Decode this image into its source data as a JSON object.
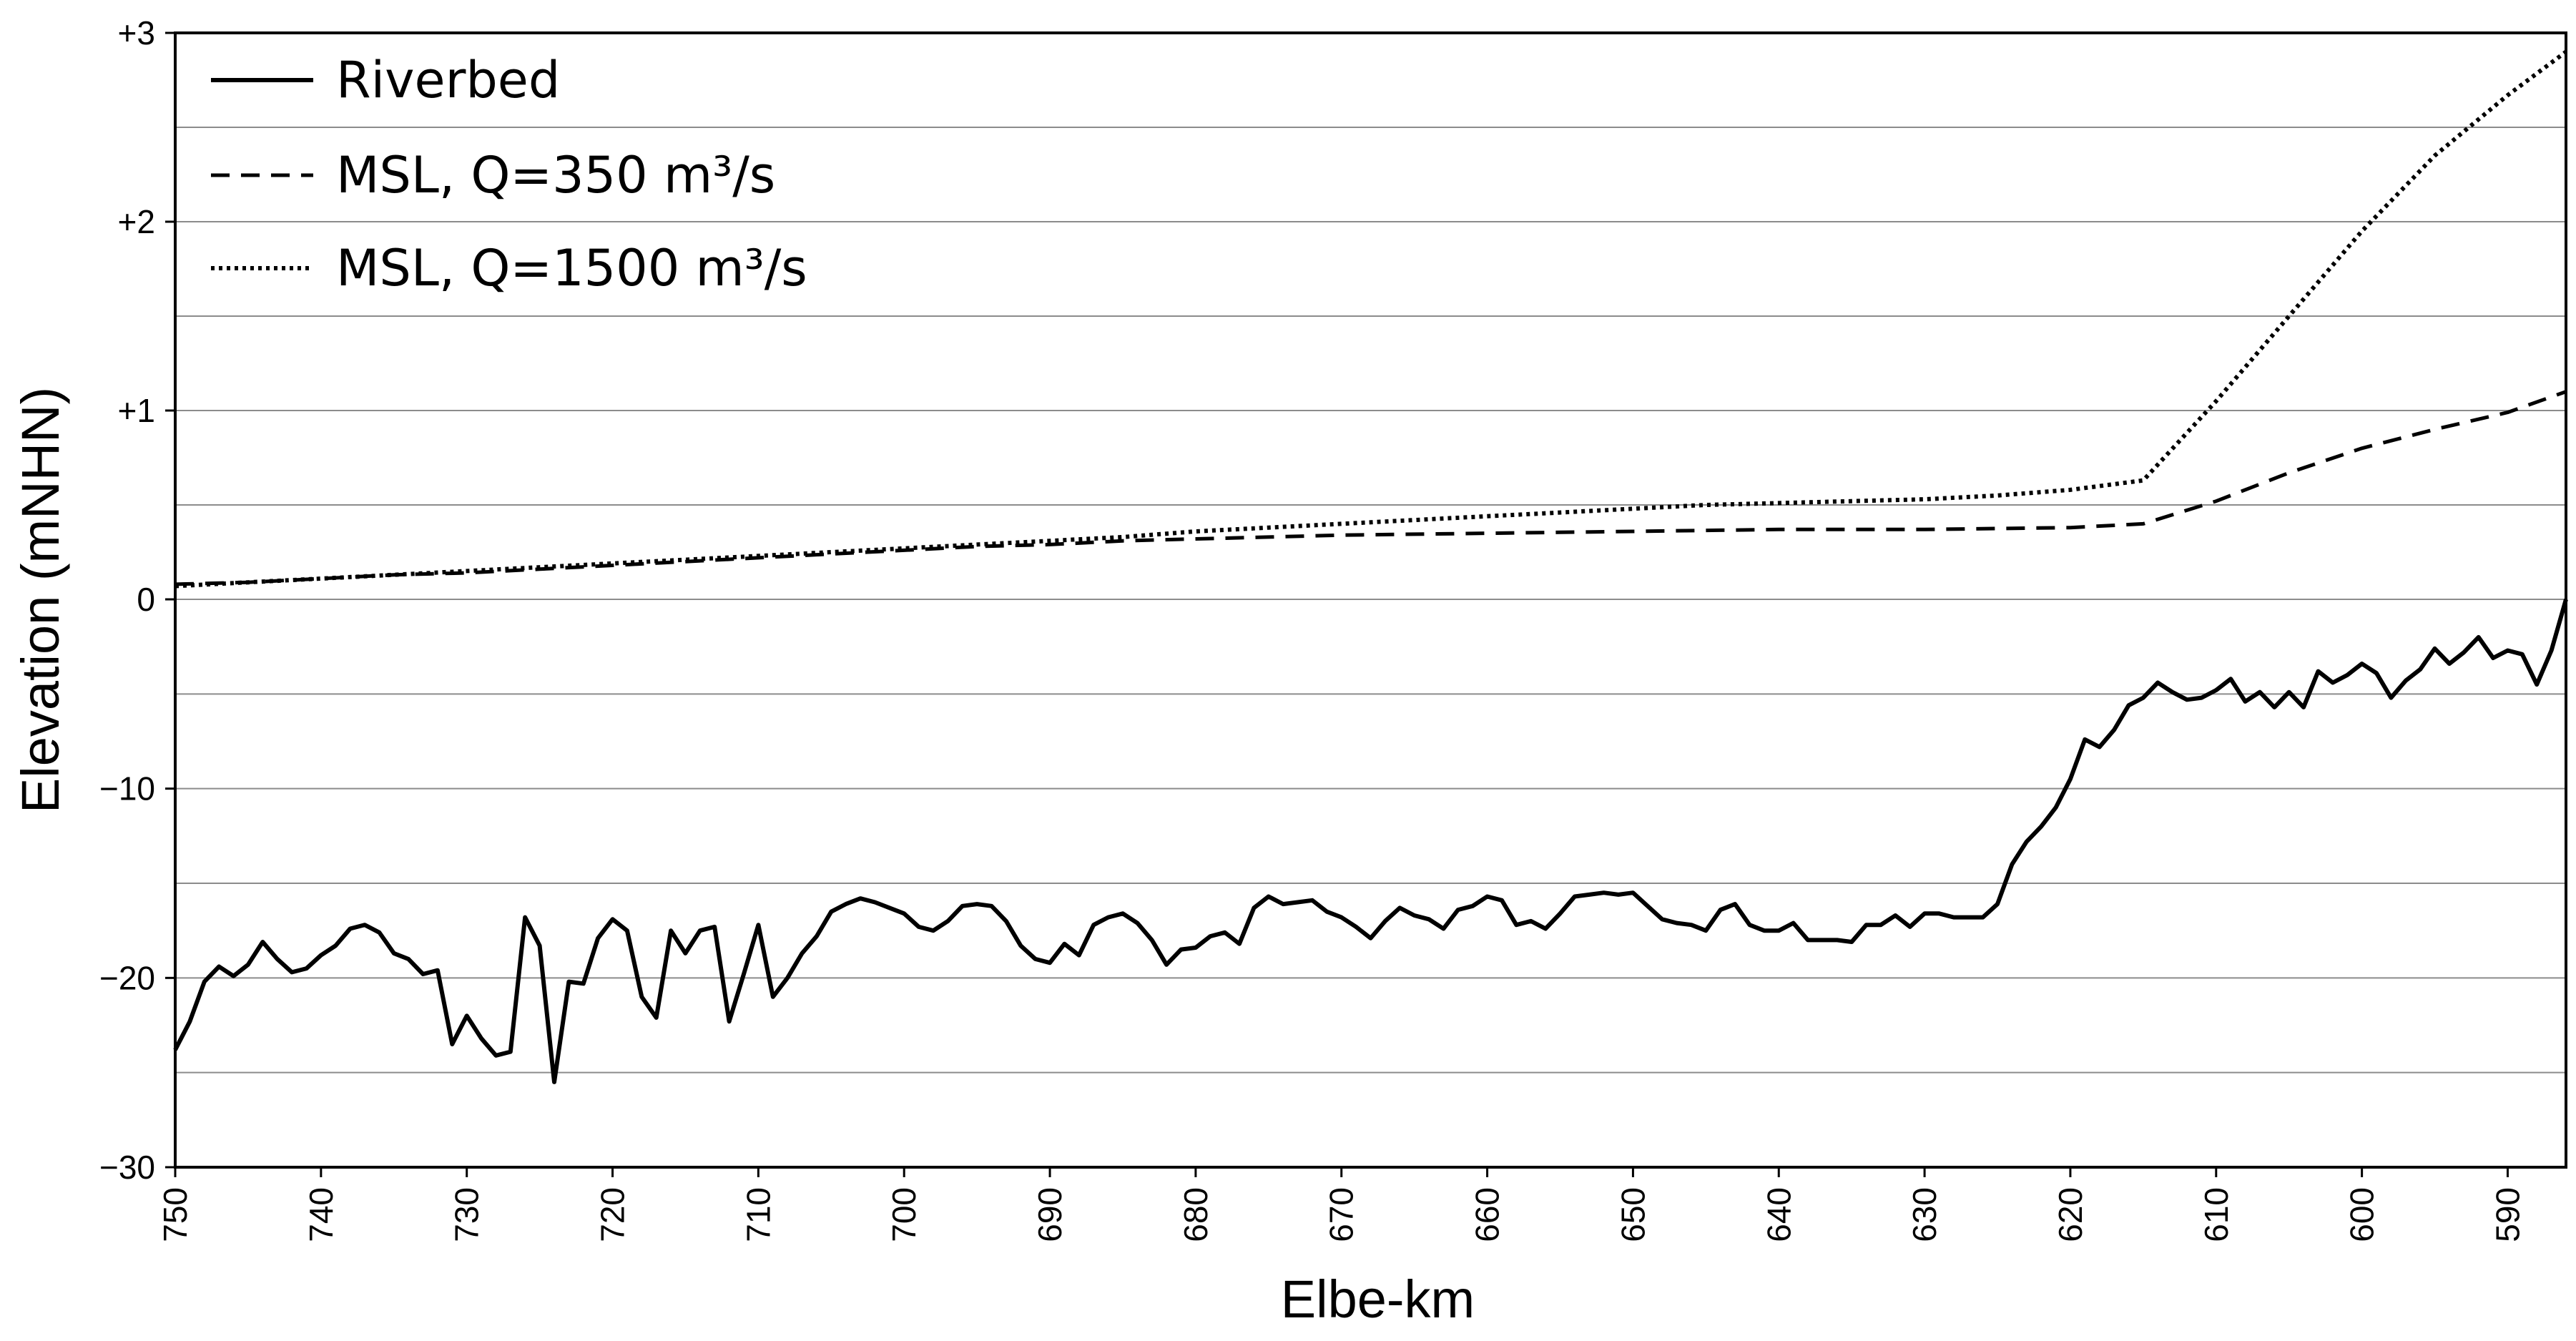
{
  "chart_data": {
    "type": "line",
    "title": "",
    "xlabel": "Elbe-km",
    "ylabel": "Elevation (mNHN)",
    "x_reversed": true,
    "xlim": [
      750,
      586
    ],
    "x_ticks": [
      750,
      740,
      730,
      720,
      710,
      700,
      690,
      680,
      670,
      660,
      650,
      640,
      630,
      620,
      610,
      600,
      590
    ],
    "y_axis_note": "broken scale: upper band 0 to +3 m, lower band 0 to -30 m",
    "y_ticks": [
      {
        "value": 3,
        "label": "+3"
      },
      {
        "value": 2,
        "label": "+2"
      },
      {
        "value": 1,
        "label": "+1"
      },
      {
        "value": 0,
        "label": "0"
      },
      {
        "value": -10,
        "label": "−10"
      },
      {
        "value": -20,
        "label": "−20"
      },
      {
        "value": -30,
        "label": "−30"
      }
    ],
    "grid": true,
    "legend_position": "top-left",
    "series": [
      {
        "name": "Riverbed",
        "style": "solid",
        "x": [
          750,
          749,
          748,
          747,
          746,
          745,
          744,
          743,
          742,
          741,
          740,
          739,
          738,
          737,
          736,
          735,
          734,
          733,
          732,
          731,
          730,
          729,
          728,
          727,
          726,
          725,
          724,
          723,
          722,
          721,
          720,
          719,
          718,
          717,
          716,
          715,
          714,
          713,
          712,
          711,
          710,
          709,
          708,
          707,
          706,
          705,
          704,
          703,
          702,
          701,
          700,
          699,
          698,
          697,
          696,
          695,
          694,
          693,
          692,
          691,
          690,
          689,
          688,
          687,
          686,
          685,
          684,
          683,
          682,
          681,
          680,
          679,
          678,
          677,
          676,
          675,
          674,
          673,
          672,
          671,
          670,
          669,
          668,
          667,
          666,
          665,
          664,
          663,
          662,
          661,
          660,
          659,
          658,
          657,
          656,
          655,
          654,
          653,
          652,
          651,
          650,
          649,
          648,
          647,
          646,
          645,
          644,
          643,
          642,
          641,
          640,
          639,
          638,
          637,
          636,
          635,
          634,
          633,
          632,
          631,
          630,
          629,
          628,
          627,
          626,
          625,
          624,
          623,
          622,
          621,
          620,
          619,
          618,
          617,
          616,
          615,
          614,
          613,
          612,
          611,
          610,
          609,
          608,
          607,
          606,
          605,
          604,
          603,
          602,
          601,
          600,
          599,
          598,
          597,
          596,
          595,
          594,
          593,
          592,
          591,
          590,
          589,
          588,
          587,
          586
        ],
        "y": [
          -23.8,
          -22.3,
          -20.2,
          -19.4,
          -19.9,
          -19.3,
          -18.1,
          -19.0,
          -19.7,
          -19.5,
          -18.8,
          -18.3,
          -17.4,
          -17.2,
          -17.6,
          -18.7,
          -19.0,
          -19.8,
          -19.6,
          -23.5,
          -22.0,
          -23.2,
          -24.1,
          -23.9,
          -16.8,
          -18.3,
          -25.5,
          -20.2,
          -20.3,
          -17.9,
          -16.9,
          -17.5,
          -21.0,
          -22.1,
          -17.5,
          -18.7,
          -17.5,
          -17.3,
          -22.3,
          -19.8,
          -17.2,
          -21.0,
          -20.0,
          -18.7,
          -17.8,
          -16.5,
          -16.1,
          -15.8,
          -16.0,
          -16.3,
          -16.6,
          -17.3,
          -17.5,
          -17.0,
          -16.2,
          -16.1,
          -16.2,
          -17.0,
          -18.3,
          -19.0,
          -19.2,
          -18.2,
          -18.8,
          -17.2,
          -16.8,
          -16.6,
          -17.1,
          -18.0,
          -19.3,
          -18.5,
          -18.4,
          -17.8,
          -17.6,
          -18.2,
          -16.3,
          -15.7,
          -16.1,
          -16.0,
          -15.9,
          -16.5,
          -16.8,
          -17.3,
          -17.9,
          -17.0,
          -16.3,
          -16.7,
          -16.9,
          -17.4,
          -16.4,
          -16.2,
          -15.7,
          -15.9,
          -17.2,
          -17.0,
          -17.4,
          -16.6,
          -15.7,
          -15.6,
          -15.5,
          -15.6,
          -15.5,
          -16.2,
          -16.9,
          -17.1,
          -17.2,
          -17.5,
          -16.4,
          -16.1,
          -17.2,
          -17.5,
          -17.5,
          -17.1,
          -18.0,
          -18.0,
          -18.0,
          -18.1,
          -17.2,
          -17.2,
          -16.7,
          -17.3,
          -16.6,
          -16.6,
          -16.8,
          -16.8,
          -16.8,
          -16.1,
          -14.0,
          -12.8,
          -12.0,
          -11.0,
          -9.5,
          -7.4,
          -7.8,
          -6.9,
          -5.6,
          -5.2,
          -4.4,
          -4.9,
          -5.3,
          -5.2,
          -4.8,
          -4.2,
          -5.4,
          -4.9,
          -5.7,
          -4.9,
          -5.7,
          -3.8,
          -4.4,
          -4.0,
          -3.4,
          -3.9,
          -5.2,
          -4.3,
          -3.7,
          -2.6,
          -3.4,
          -2.8,
          -2.0,
          -3.1,
          -2.7,
          -2.9,
          -4.5,
          -2.7,
          0.0
        ]
      },
      {
        "name": "MSL, Q=350 m³/s",
        "style": "dashed",
        "x": [
          750,
          745,
          740,
          735,
          730,
          725,
          720,
          715,
          710,
          705,
          700,
          695,
          690,
          685,
          680,
          675,
          670,
          665,
          660,
          655,
          650,
          645,
          640,
          635,
          630,
          625,
          620,
          615,
          610,
          605,
          600,
          595,
          590,
          586
        ],
        "y": [
          0.08,
          0.09,
          0.11,
          0.13,
          0.14,
          0.16,
          0.18,
          0.2,
          0.22,
          0.24,
          0.26,
          0.28,
          0.29,
          0.31,
          0.32,
          0.33,
          0.34,
          0.345,
          0.35,
          0.355,
          0.36,
          0.365,
          0.37,
          0.37,
          0.37,
          0.375,
          0.38,
          0.4,
          0.52,
          0.67,
          0.8,
          0.9,
          0.99,
          1.1
        ]
      },
      {
        "name": "MSL, Q=1500 m³/s",
        "style": "dotted",
        "x": [
          750,
          745,
          740,
          735,
          730,
          725,
          720,
          715,
          710,
          705,
          700,
          695,
          690,
          685,
          680,
          675,
          670,
          665,
          660,
          655,
          650,
          645,
          640,
          635,
          630,
          625,
          620,
          615,
          610,
          605,
          600,
          595,
          590,
          586
        ],
        "y": [
          0.07,
          0.09,
          0.11,
          0.13,
          0.15,
          0.17,
          0.19,
          0.21,
          0.23,
          0.25,
          0.27,
          0.29,
          0.31,
          0.33,
          0.36,
          0.38,
          0.4,
          0.42,
          0.44,
          0.46,
          0.48,
          0.5,
          0.51,
          0.52,
          0.53,
          0.55,
          0.58,
          0.63,
          1.05,
          1.5,
          1.95,
          2.35,
          2.67,
          2.9
        ]
      }
    ]
  }
}
